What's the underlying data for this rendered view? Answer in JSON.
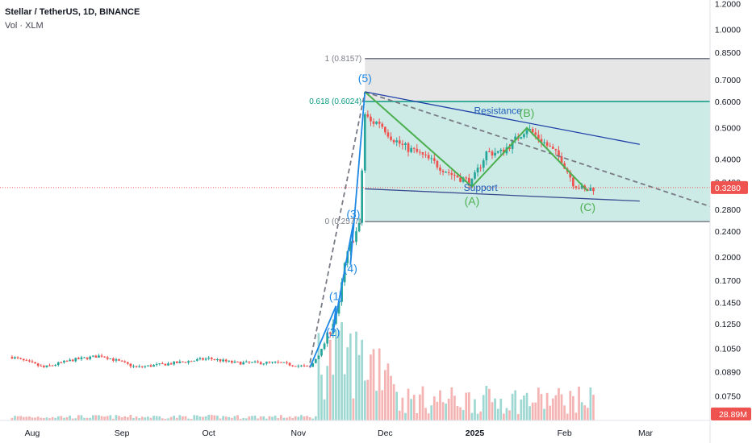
{
  "header": {
    "symbol_line": "Stellar / TetherUS, 1D, BINANCE",
    "indicator_line": "Vol · XLM"
  },
  "colors": {
    "up": "#26a69a",
    "down": "#ef5350",
    "vol_up": "#9fd8d2",
    "vol_down": "#f4b4b3",
    "fib_zone": "#cdebe6",
    "fib_top_zone": "#e6e6e6",
    "resistance": "#2962ff",
    "wave": "#4caf50",
    "impulse": "#1e88e5",
    "dashed": "#787b86"
  },
  "chart_data": {
    "type": "candlestick",
    "symbol": "Stellar / TetherUS",
    "interval": "1D",
    "exchange": "BINANCE",
    "y_scale": "log",
    "y_ticks": [
      "1.2000",
      "1.0000",
      "0.8500",
      "0.7000",
      "0.6000",
      "0.5000",
      "0.4000",
      "0.3400",
      "0.2800",
      "0.2400",
      "0.2000",
      "0.1700",
      "0.1450",
      "0.1250",
      "0.1050",
      "0.0890",
      "0.0750"
    ],
    "x_ticks": [
      "Aug",
      "Sep",
      "Oct",
      "Nov",
      "Dec",
      "2025",
      "Feb",
      "Mar"
    ],
    "last_price": "0.3280",
    "volume_label": "28.89M",
    "fib_levels": [
      {
        "label": "1 (0.8157)",
        "value": 0.8157
      },
      {
        "label": "0.618 (0.6024)",
        "value": 0.6024
      },
      {
        "label": "0 (0.2577)",
        "value": 0.2577
      }
    ],
    "price_path": [
      [
        "2024-07-25",
        0.099
      ],
      [
        "2024-08-05",
        0.092
      ],
      [
        "2024-08-15",
        0.097
      ],
      [
        "2024-08-25",
        0.1
      ],
      [
        "2024-09-06",
        0.092
      ],
      [
        "2024-09-20",
        0.095
      ],
      [
        "2024-10-01",
        0.098
      ],
      [
        "2024-10-10",
        0.095
      ],
      [
        "2024-10-25",
        0.095
      ],
      [
        "2024-11-05",
        0.092
      ],
      [
        "2024-11-09",
        0.104
      ],
      [
        "2024-11-12",
        0.12
      ],
      [
        "2024-11-15",
        0.143
      ],
      [
        "2024-11-17",
        0.19
      ],
      [
        "2024-11-19",
        0.22
      ],
      [
        "2024-11-22",
        0.25
      ],
      [
        "2024-11-24",
        0.55
      ],
      [
        "2024-11-26",
        0.52
      ],
      [
        "2024-11-29",
        0.52
      ],
      [
        "2024-12-03",
        0.47
      ],
      [
        "2024-12-07",
        0.44
      ],
      [
        "2024-12-12",
        0.42
      ],
      [
        "2024-12-18",
        0.39
      ],
      [
        "2024-12-24",
        0.36
      ],
      [
        "2024-12-31",
        0.34
      ],
      [
        "2025-01-05",
        0.42
      ],
      [
        "2025-01-10",
        0.42
      ],
      [
        "2025-01-14",
        0.45
      ],
      [
        "2025-01-19",
        0.5
      ],
      [
        "2025-01-25",
        0.45
      ],
      [
        "2025-01-31",
        0.4
      ],
      [
        "2025-02-04",
        0.34
      ],
      [
        "2025-02-08",
        0.32
      ],
      [
        "2025-02-11",
        0.328
      ]
    ],
    "trendlines": [
      {
        "name": "Resistance",
        "from": [
          "2024-11-24",
          0.645
        ],
        "to": [
          "2025-02-27",
          0.445
        ]
      },
      {
        "name": "Support",
        "from": [
          "2024-11-24",
          0.325
        ],
        "to": [
          "2025-02-27",
          0.298
        ]
      }
    ],
    "wave_labels": [
      {
        "label": "(1)",
        "date": "2024-11-14",
        "value": 0.148
      },
      {
        "label": "(2)",
        "date": "2024-11-13",
        "value": 0.115
      },
      {
        "label": "(3)",
        "date": "2024-11-20",
        "value": 0.265
      },
      {
        "label": "(4)",
        "date": "2024-11-19",
        "value": 0.18
      },
      {
        "label": "(5)",
        "date": "2024-11-24",
        "value": 0.69
      },
      {
        "label": "(A)",
        "date": "2024-12-31",
        "value": 0.29
      },
      {
        "label": "(B)",
        "date": "2025-01-19",
        "value": 0.54
      },
      {
        "label": "(C)",
        "date": "2025-02-09",
        "value": 0.278
      }
    ]
  }
}
